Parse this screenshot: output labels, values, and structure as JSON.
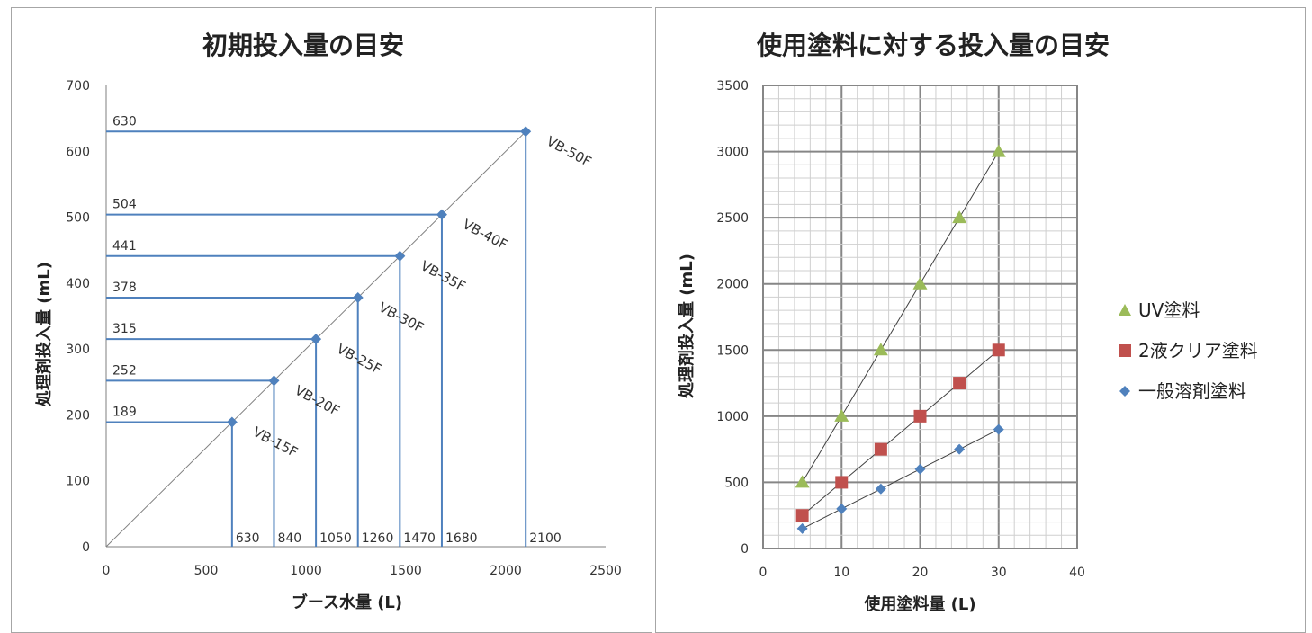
{
  "chart_data": [
    {
      "type": "scatter",
      "title": "初期投入量の目安",
      "xlabel": "ブース水量 (L)",
      "ylabel": "処理剤投入量 (mL)",
      "xlim": [
        0,
        2500
      ],
      "ylim": [
        0,
        700
      ],
      "xticks": [
        0,
        500,
        1000,
        1500,
        2000,
        2500
      ],
      "yticks": [
        0,
        100,
        200,
        300,
        400,
        500,
        600,
        700
      ],
      "grid": false,
      "reference_line": {
        "from": [
          0,
          0
        ],
        "to": [
          2100,
          630
        ],
        "color": "#808080"
      },
      "series": [
        {
          "color": "#4f81bd",
          "marker": "diamond",
          "points": [
            {
              "x": 630,
              "y": 189,
              "label": "VB-15F",
              "x_label": "630",
              "y_label": "189"
            },
            {
              "x": 840,
              "y": 252,
              "label": "VB-20F",
              "x_label": "840",
              "y_label": "252"
            },
            {
              "x": 1050,
              "y": 315,
              "label": "VB-25F",
              "x_label": "1050",
              "y_label": "315"
            },
            {
              "x": 1260,
              "y": 378,
              "label": "VB-30F",
              "x_label": "1260",
              "y_label": "378"
            },
            {
              "x": 1470,
              "y": 441,
              "label": "VB-35F",
              "x_label": "1470",
              "y_label": "441"
            },
            {
              "x": 1680,
              "y": 504,
              "label": "VB-40F",
              "x_label": "1680",
              "y_label": "504"
            },
            {
              "x": 2100,
              "y": 630,
              "label": "VB-50F",
              "x_label": "2100",
              "y_label": "630"
            }
          ]
        }
      ]
    },
    {
      "type": "scatter",
      "title": "使用塗料に対する投入量の目安",
      "xlabel": "使用塗料量 (L)",
      "ylabel": "処理剤投入量 (mL)",
      "xlim": [
        0,
        40
      ],
      "ylim": [
        0,
        3500
      ],
      "xticks": [
        0,
        10,
        20,
        30,
        40
      ],
      "yticks": [
        0,
        500,
        1000,
        1500,
        2000,
        2500,
        3000,
        3500
      ],
      "grid": true,
      "legend_position": "right",
      "series": [
        {
          "name": "UV塗料",
          "marker": "triangle",
          "color": "#9bbb59",
          "x": [
            5,
            10,
            15,
            20,
            25,
            30
          ],
          "y": [
            500,
            1000,
            1500,
            2000,
            2500,
            3000
          ]
        },
        {
          "name": "2液クリア塗料",
          "marker": "square",
          "color": "#c0504d",
          "x": [
            5,
            10,
            15,
            20,
            25,
            30
          ],
          "y": [
            250,
            500,
            750,
            1000,
            1250,
            1500
          ]
        },
        {
          "name": "一般溶剤塗料",
          "marker": "diamond",
          "color": "#4f81bd",
          "x": [
            5,
            10,
            15,
            20,
            25,
            30
          ],
          "y": [
            150,
            300,
            450,
            600,
            750,
            900
          ]
        }
      ]
    }
  ]
}
